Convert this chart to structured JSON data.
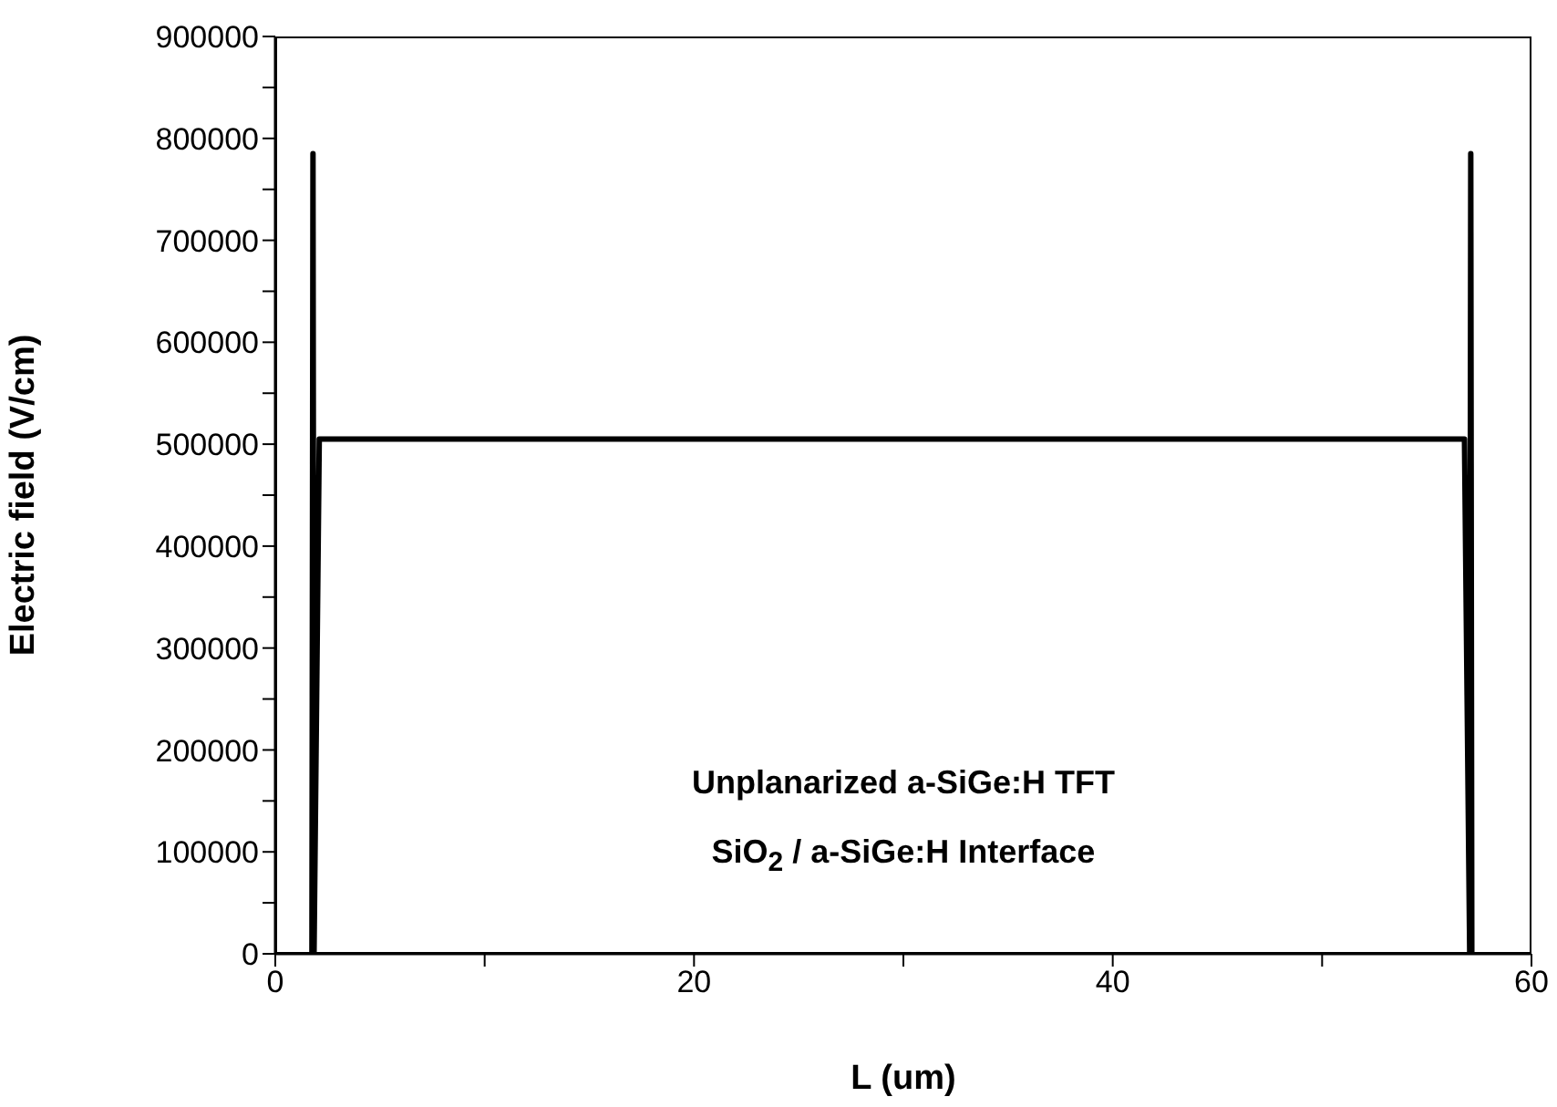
{
  "chart_data": {
    "type": "line",
    "xlabel": "L (um)",
    "ylabel": "Electric field (V/cm)",
    "annotations": [
      "Unplanarized a-SiGe:H TFT",
      "SiO$_{2}$ / a-SiGe:H Interface"
    ],
    "series": [
      {
        "color": "#000000",
        "x": [
          1.75,
          1.8,
          1.85,
          2.1,
          56.8,
          57.05,
          57.1,
          57.15
        ],
        "values": [
          0,
          785000,
          0,
          505000,
          505000,
          0,
          785000,
          0
        ]
      }
    ],
    "xlim": [
      0,
      60
    ],
    "xticks": [
      0,
      {
        "value": 10,
        "label": null
      },
      20,
      {
        "value": 30,
        "label": null
      },
      40,
      {
        "value": 50,
        "label": null
      },
      60
    ],
    "ylim": [
      0,
      900000
    ],
    "yticks": [
      0,
      {
        "value": 50000,
        "label": null
      },
      100000,
      {
        "value": 150000,
        "label": null
      },
      200000,
      {
        "value": 250000,
        "label": null
      },
      300000,
      {
        "value": 350000,
        "label": null
      },
      400000,
      {
        "value": 450000,
        "label": null
      },
      500000,
      {
        "value": 550000,
        "label": null
      },
      600000,
      {
        "value": 650000,
        "label": null
      },
      700000,
      {
        "value": 750000,
        "label": null
      },
      800000,
      {
        "value": 850000,
        "label": null
      },
      900000
    ],
    "grid": false,
    "legend": false,
    "marker": "none",
    "line_style": "solid"
  }
}
